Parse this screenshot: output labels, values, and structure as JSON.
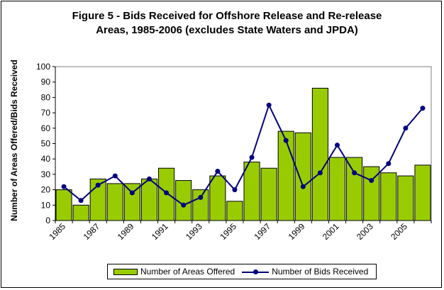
{
  "chart_data": {
    "type": "bar",
    "title": "Figure 5 - Bids Received for Offshore Release and Re-release Areas, 1985-2006 (excludes State Waters and JPDA)",
    "title_line1": "Figure 5 - Bids Received for Offshore Release and Re-release",
    "title_line2": "Areas, 1985-2006 (excludes State Waters and JPDA)",
    "xlabel": "",
    "ylabel": "Number of Areas Offered/Bids Received",
    "ylim": [
      0,
      100
    ],
    "yticks": [
      0,
      10,
      20,
      30,
      40,
      50,
      60,
      70,
      80,
      90,
      100
    ],
    "categories": [
      "1985",
      "1986",
      "1987",
      "1988",
      "1989",
      "1990",
      "1991",
      "1992",
      "1993",
      "1994",
      "1995",
      "1996",
      "1997",
      "1998",
      "1999",
      "2000",
      "2001",
      "2002",
      "2003",
      "2004",
      "2005",
      "2006"
    ],
    "xtick_labels": [
      "1985",
      "1987",
      "1989",
      "1991",
      "1993",
      "1995",
      "1997",
      "1999",
      "2001",
      "2003",
      "2005"
    ],
    "grid": false,
    "legend_position": "bottom",
    "series": [
      {
        "name": "Number of Areas Offered",
        "type": "bar",
        "color": "#99cc00",
        "values": [
          20,
          10,
          27,
          24,
          24,
          27,
          34,
          26,
          20,
          29,
          12.5,
          38,
          34,
          58,
          57,
          86,
          41,
          41,
          35,
          31,
          29,
          36
        ]
      },
      {
        "name": "Number of Bids Received",
        "type": "line",
        "color": "#000080",
        "values": [
          22,
          13,
          23,
          29,
          18,
          27,
          18,
          10,
          15,
          32,
          20,
          41,
          75,
          52,
          22,
          31,
          49,
          31,
          26,
          37,
          60,
          73
        ]
      }
    ]
  }
}
